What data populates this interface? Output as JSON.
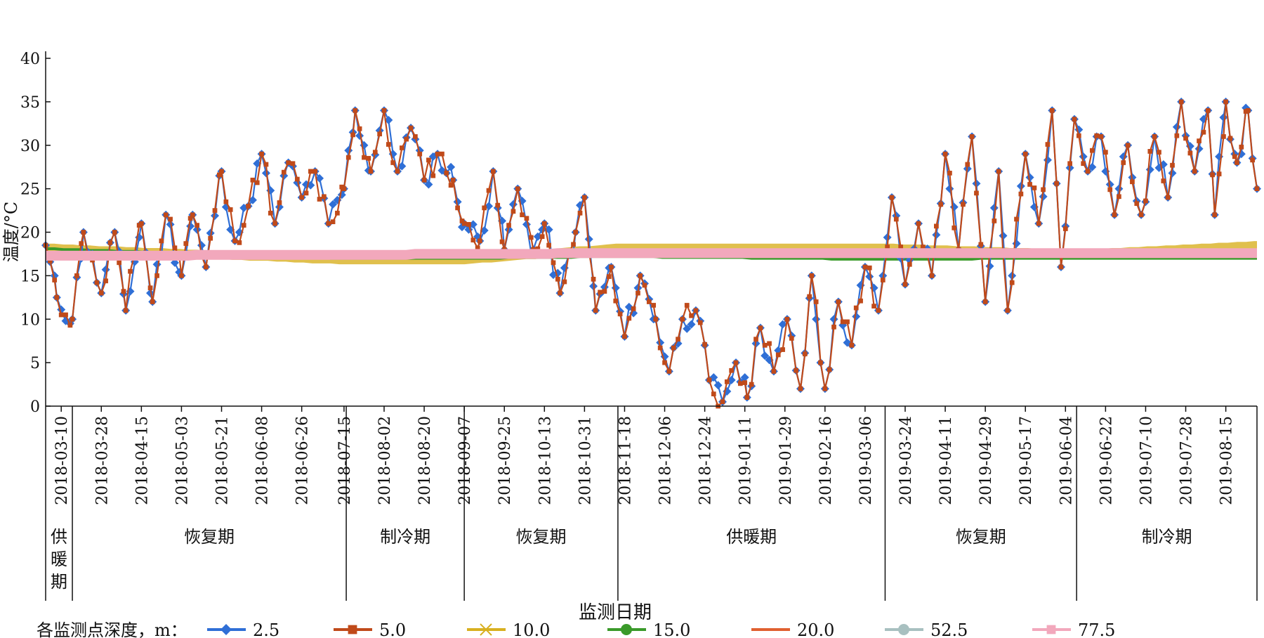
{
  "chart_data": {
    "type": "line",
    "ylabel": "温度/°C",
    "xlabel": "监测日期",
    "ylim": [
      0,
      40
    ],
    "yticks": [
      0,
      5,
      10,
      15,
      20,
      25,
      30,
      35,
      40
    ],
    "x_start": "2018-03-03",
    "x_end": "2019-08-29",
    "xticks": [
      "2018-03-10",
      "2018-03-28",
      "2018-04-15",
      "2018-05-03",
      "2018-05-21",
      "2018-06-08",
      "2018-06-26",
      "2018-07-15",
      "2018-08-02",
      "2018-08-20",
      "2018-09-07",
      "2018-09-25",
      "2018-10-13",
      "2018-10-31",
      "2018-11-18",
      "2018-12-06",
      "2018-12-24",
      "2019-01-11",
      "2019-01-29",
      "2019-02-16",
      "2019-03-06",
      "2019-03-24",
      "2019-04-11",
      "2019-04-29",
      "2019-05-17",
      "2019-06-04",
      "2019-06-22",
      "2019-07-10",
      "2019-07-28",
      "2019-08-15"
    ],
    "periods": [
      {
        "label": "供暖期",
        "start": "2018-03-03",
        "end": "2018-03-15"
      },
      {
        "label": "恢复期",
        "start": "2018-03-15",
        "end": "2018-07-16"
      },
      {
        "label": "制冷期",
        "start": "2018-07-16",
        "end": "2018-09-07"
      },
      {
        "label": "恢复期",
        "start": "2018-09-07",
        "end": "2018-11-15"
      },
      {
        "label": "供暖期",
        "start": "2018-11-15",
        "end": "2019-03-15"
      },
      {
        "label": "恢复期",
        "start": "2019-03-15",
        "end": "2019-06-09"
      },
      {
        "label": "制冷期",
        "start": "2019-06-09",
        "end": "2019-08-29"
      }
    ],
    "legend_title": "各监测点深度，m：",
    "legend_position": "bottom",
    "series": [
      {
        "name": "2.5",
        "color": "#2f6fd6",
        "marker": "diamond",
        "anchors": [
          [
            "2018-03-03",
            18.5
          ],
          [
            "2018-03-08",
            12.5
          ],
          [
            "2018-03-15",
            10
          ],
          [
            "2018-03-20",
            20
          ],
          [
            "2018-03-28",
            13
          ],
          [
            "2018-04-03",
            20
          ],
          [
            "2018-04-08",
            11
          ],
          [
            "2018-04-15",
            21
          ],
          [
            "2018-04-20",
            12
          ],
          [
            "2018-04-26",
            22
          ],
          [
            "2018-05-03",
            15
          ],
          [
            "2018-05-08",
            22
          ],
          [
            "2018-05-14",
            16
          ],
          [
            "2018-05-21",
            27
          ],
          [
            "2018-05-27",
            19
          ],
          [
            "2018-06-02",
            23
          ],
          [
            "2018-06-08",
            29
          ],
          [
            "2018-06-14",
            21
          ],
          [
            "2018-06-20",
            28
          ],
          [
            "2018-06-26",
            24
          ],
          [
            "2018-07-02",
            27
          ],
          [
            "2018-07-08",
            21
          ],
          [
            "2018-07-15",
            25
          ],
          [
            "2018-07-20",
            34
          ],
          [
            "2018-07-27",
            27
          ],
          [
            "2018-08-02",
            34
          ],
          [
            "2018-08-08",
            27
          ],
          [
            "2018-08-14",
            32
          ],
          [
            "2018-08-20",
            26
          ],
          [
            "2018-08-26",
            29
          ],
          [
            "2018-09-02",
            26
          ],
          [
            "2018-09-07",
            21
          ],
          [
            "2018-09-14",
            19
          ],
          [
            "2018-09-20",
            27
          ],
          [
            "2018-09-25",
            18
          ],
          [
            "2018-10-01",
            25
          ],
          [
            "2018-10-08",
            18
          ],
          [
            "2018-10-13",
            21
          ],
          [
            "2018-10-20",
            13
          ],
          [
            "2018-10-27",
            20
          ],
          [
            "2018-10-31",
            24
          ],
          [
            "2018-11-05",
            11
          ],
          [
            "2018-11-12",
            16
          ],
          [
            "2018-11-18",
            8
          ],
          [
            "2018-11-25",
            15
          ],
          [
            "2018-12-02",
            10
          ],
          [
            "2018-12-08",
            4
          ],
          [
            "2018-12-14",
            10
          ],
          [
            "2018-12-20",
            11
          ],
          [
            "2018-12-26",
            3
          ],
          [
            "2019-01-01",
            0.5
          ],
          [
            "2019-01-07",
            5
          ],
          [
            "2019-01-12",
            1
          ],
          [
            "2019-01-18",
            9
          ],
          [
            "2019-01-24",
            4
          ],
          [
            "2019-01-30",
            10
          ],
          [
            "2019-02-05",
            2
          ],
          [
            "2019-02-10",
            15
          ],
          [
            "2019-02-16",
            2
          ],
          [
            "2019-02-22",
            12
          ],
          [
            "2019-02-28",
            7
          ],
          [
            "2019-03-06",
            16
          ],
          [
            "2019-03-12",
            11
          ],
          [
            "2019-03-18",
            24
          ],
          [
            "2019-03-24",
            14
          ],
          [
            "2019-03-30",
            21
          ],
          [
            "2019-04-05",
            15
          ],
          [
            "2019-04-11",
            29
          ],
          [
            "2019-04-17",
            18
          ],
          [
            "2019-04-23",
            31
          ],
          [
            "2019-04-29",
            12
          ],
          [
            "2019-05-05",
            27
          ],
          [
            "2019-05-09",
            11
          ],
          [
            "2019-05-17",
            29
          ],
          [
            "2019-05-23",
            21
          ],
          [
            "2019-05-29",
            34
          ],
          [
            "2019-06-02",
            16
          ],
          [
            "2019-06-08",
            33
          ],
          [
            "2019-06-14",
            27
          ],
          [
            "2019-06-20",
            31
          ],
          [
            "2019-06-26",
            22
          ],
          [
            "2019-07-02",
            30
          ],
          [
            "2019-07-08",
            22
          ],
          [
            "2019-07-14",
            31
          ],
          [
            "2019-07-20",
            24
          ],
          [
            "2019-07-26",
            35
          ],
          [
            "2019-08-01",
            27
          ],
          [
            "2019-08-07",
            34
          ],
          [
            "2019-08-10",
            22
          ],
          [
            "2019-08-15",
            35
          ],
          [
            "2019-08-20",
            28
          ],
          [
            "2019-08-25",
            34
          ],
          [
            "2019-08-29",
            25
          ]
        ]
      },
      {
        "name": "5.0",
        "color": "#c04a1a",
        "marker": "square",
        "anchors": [
          [
            "2018-03-03",
            18.5
          ],
          [
            "2018-03-08",
            12.5
          ],
          [
            "2018-03-15",
            10
          ],
          [
            "2018-03-20",
            20
          ],
          [
            "2018-03-28",
            13
          ],
          [
            "2018-04-03",
            20
          ],
          [
            "2018-04-08",
            11
          ],
          [
            "2018-04-15",
            21
          ],
          [
            "2018-04-20",
            12
          ],
          [
            "2018-04-26",
            22
          ],
          [
            "2018-05-03",
            15
          ],
          [
            "2018-05-08",
            22
          ],
          [
            "2018-05-14",
            16
          ],
          [
            "2018-05-21",
            27
          ],
          [
            "2018-05-27",
            19
          ],
          [
            "2018-06-02",
            23
          ],
          [
            "2018-06-08",
            29
          ],
          [
            "2018-06-14",
            21
          ],
          [
            "2018-06-20",
            28
          ],
          [
            "2018-06-26",
            24
          ],
          [
            "2018-07-02",
            27
          ],
          [
            "2018-07-08",
            21
          ],
          [
            "2018-07-15",
            25
          ],
          [
            "2018-07-20",
            34
          ],
          [
            "2018-07-27",
            27
          ],
          [
            "2018-08-02",
            34
          ],
          [
            "2018-08-08",
            27
          ],
          [
            "2018-08-14",
            32
          ],
          [
            "2018-08-20",
            26
          ],
          [
            "2018-08-26",
            29
          ],
          [
            "2018-09-02",
            26
          ],
          [
            "2018-09-07",
            21
          ],
          [
            "2018-09-14",
            19
          ],
          [
            "2018-09-20",
            27
          ],
          [
            "2018-09-25",
            18
          ],
          [
            "2018-10-01",
            25
          ],
          [
            "2018-10-08",
            18
          ],
          [
            "2018-10-13",
            21
          ],
          [
            "2018-10-20",
            13
          ],
          [
            "2018-10-27",
            20
          ],
          [
            "2018-10-31",
            24
          ],
          [
            "2018-11-05",
            11
          ],
          [
            "2018-11-12",
            16
          ],
          [
            "2018-11-18",
            8
          ],
          [
            "2018-11-25",
            15
          ],
          [
            "2018-12-02",
            10
          ],
          [
            "2018-12-08",
            4
          ],
          [
            "2018-12-14",
            10
          ],
          [
            "2018-12-20",
            11
          ],
          [
            "2018-12-26",
            3
          ],
          [
            "2019-01-01",
            0.5
          ],
          [
            "2019-01-07",
            5
          ],
          [
            "2019-01-12",
            1
          ],
          [
            "2019-01-18",
            9
          ],
          [
            "2019-01-24",
            4
          ],
          [
            "2019-01-30",
            10
          ],
          [
            "2019-02-05",
            2
          ],
          [
            "2019-02-10",
            15
          ],
          [
            "2019-02-16",
            2
          ],
          [
            "2019-02-22",
            12
          ],
          [
            "2019-02-28",
            7
          ],
          [
            "2019-03-06",
            16
          ],
          [
            "2019-03-12",
            11
          ],
          [
            "2019-03-18",
            24
          ],
          [
            "2019-03-24",
            14
          ],
          [
            "2019-03-30",
            21
          ],
          [
            "2019-04-05",
            15
          ],
          [
            "2019-04-11",
            29
          ],
          [
            "2019-04-17",
            18
          ],
          [
            "2019-04-23",
            31
          ],
          [
            "2019-04-29",
            12
          ],
          [
            "2019-05-05",
            27
          ],
          [
            "2019-05-09",
            11
          ],
          [
            "2019-05-17",
            29
          ],
          [
            "2019-05-23",
            21
          ],
          [
            "2019-05-29",
            34
          ],
          [
            "2019-06-02",
            16
          ],
          [
            "2019-06-08",
            33
          ],
          [
            "2019-06-14",
            27
          ],
          [
            "2019-06-20",
            31
          ],
          [
            "2019-06-26",
            22
          ],
          [
            "2019-07-02",
            30
          ],
          [
            "2019-07-08",
            22
          ],
          [
            "2019-07-14",
            31
          ],
          [
            "2019-07-20",
            24
          ],
          [
            "2019-07-26",
            35
          ],
          [
            "2019-08-01",
            27
          ],
          [
            "2019-08-07",
            34
          ],
          [
            "2019-08-10",
            22
          ],
          [
            "2019-08-15",
            35
          ],
          [
            "2019-08-20",
            28
          ],
          [
            "2019-08-25",
            34
          ],
          [
            "2019-08-29",
            25
          ]
        ]
      },
      {
        "name": "10.0",
        "color": "#d8b020",
        "marker": "x",
        "anchors": [
          [
            "2018-03-03",
            18.2
          ],
          [
            "2018-07-15",
            16.8
          ],
          [
            "2018-09-07",
            16.8
          ],
          [
            "2018-11-15",
            18.2
          ],
          [
            "2019-03-15",
            18.2
          ],
          [
            "2019-06-09",
            17.5
          ],
          [
            "2019-08-29",
            18.5
          ]
        ]
      },
      {
        "name": "15.0",
        "color": "#3a9a2a",
        "marker": "circle",
        "anchors": [
          [
            "2018-03-03",
            18.1
          ],
          [
            "2018-07-15",
            17.0
          ],
          [
            "2018-09-07",
            17.0
          ],
          [
            "2018-11-15",
            17.2
          ],
          [
            "2019-03-10",
            16.9
          ],
          [
            "2019-06-09",
            17.0
          ],
          [
            "2019-08-29",
            17.0
          ]
        ]
      },
      {
        "name": "20.0",
        "color": "#e06030",
        "marker": "none",
        "anchors": [
          [
            "2018-03-03",
            17.6
          ],
          [
            "2019-08-29",
            17.6
          ]
        ]
      },
      {
        "name": "52.5",
        "color": "#a8c0c0",
        "marker": "circle",
        "anchors": [
          [
            "2018-03-03",
            17.5
          ],
          [
            "2019-08-29",
            17.5
          ]
        ]
      },
      {
        "name": "77.5",
        "color": "#f2a8bc",
        "marker": "square",
        "anchors": [
          [
            "2018-03-03",
            17.3
          ],
          [
            "2018-07-15",
            17.4
          ],
          [
            "2018-11-15",
            17.6
          ],
          [
            "2019-08-29",
            17.6
          ]
        ]
      }
    ]
  }
}
